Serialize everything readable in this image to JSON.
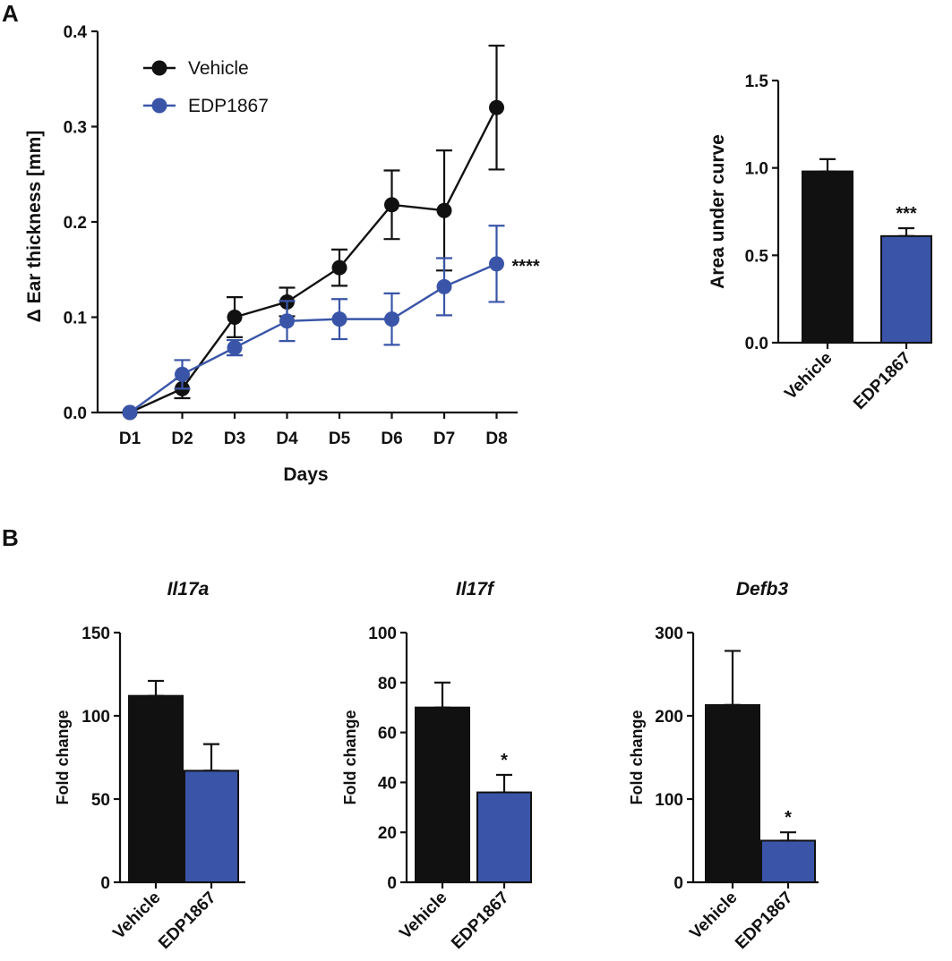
{
  "figure": {
    "panel_a_label": "A",
    "panel_b_label": "B"
  },
  "chart_data": [
    {
      "id": "line",
      "type": "line",
      "title": "",
      "xlabel": "Days",
      "ylabel": "Δ Ear thickness [mm]",
      "categories": [
        "D1",
        "D2",
        "D3",
        "D4",
        "D5",
        "D6",
        "D7",
        "D8"
      ],
      "ylim": [
        0,
        0.4
      ],
      "yticks": [
        "0.0",
        "0.1",
        "0.2",
        "0.3",
        "0.4"
      ],
      "series": [
        {
          "name": "Vehicle",
          "color": "#111111",
          "values": [
            0.0,
            0.025,
            0.1,
            0.116,
            0.152,
            0.218,
            0.212,
            0.32
          ],
          "errors": [
            0.0,
            0.01,
            0.021,
            0.015,
            0.019,
            0.036,
            0.063,
            0.065
          ]
        },
        {
          "name": "EDP1867",
          "color": "#3a55a8",
          "values": [
            0.0,
            0.04,
            0.068,
            0.096,
            0.098,
            0.098,
            0.132,
            0.156
          ],
          "errors": [
            0.0,
            0.015,
            0.008,
            0.021,
            0.021,
            0.027,
            0.03,
            0.04
          ]
        }
      ],
      "annotation": "****",
      "legend": "top-left"
    },
    {
      "id": "auc",
      "type": "bar",
      "title": "",
      "xlabel": "",
      "ylabel": "Area under curve",
      "categories": [
        "Vehicle",
        "EDP1867"
      ],
      "values": [
        0.98,
        0.61
      ],
      "errors": [
        0.07,
        0.045
      ],
      "colors": [
        "#111111",
        "#3a55a8"
      ],
      "ylim": [
        0,
        1.5
      ],
      "yticks": [
        "0.0",
        "0.5",
        "1.0",
        "1.5"
      ],
      "significance": [
        "",
        "***"
      ]
    },
    {
      "id": "il17a",
      "type": "bar",
      "title": "Il17a",
      "xlabel": "",
      "ylabel": "Fold change",
      "categories": [
        "Vehicle",
        "EDP1867"
      ],
      "values": [
        112,
        67
      ],
      "errors": [
        9,
        16
      ],
      "colors": [
        "#111111",
        "#3a55a8"
      ],
      "ylim": [
        0,
        150
      ],
      "yticks": [
        "0",
        "50",
        "100",
        "150"
      ],
      "significance": [
        "",
        ""
      ]
    },
    {
      "id": "il17f",
      "type": "bar",
      "title": "Il17f",
      "xlabel": "",
      "ylabel": "Fold change",
      "categories": [
        "Vehicle",
        "EDP1867"
      ],
      "values": [
        70,
        36
      ],
      "errors": [
        10,
        7
      ],
      "colors": [
        "#111111",
        "#3a55a8"
      ],
      "ylim": [
        0,
        100
      ],
      "yticks": [
        "0",
        "20",
        "40",
        "60",
        "80",
        "100"
      ],
      "significance": [
        "",
        "*"
      ]
    },
    {
      "id": "defb3",
      "type": "bar",
      "title": "Defb3",
      "xlabel": "",
      "ylabel": "Fold change",
      "categories": [
        "Vehicle",
        "EDP1867"
      ],
      "values": [
        213,
        50
      ],
      "errors": [
        65,
        10
      ],
      "colors": [
        "#111111",
        "#3a55a8"
      ],
      "ylim": [
        0,
        300
      ],
      "yticks": [
        "0",
        "100",
        "200",
        "300"
      ],
      "significance": [
        "",
        "*"
      ]
    }
  ]
}
